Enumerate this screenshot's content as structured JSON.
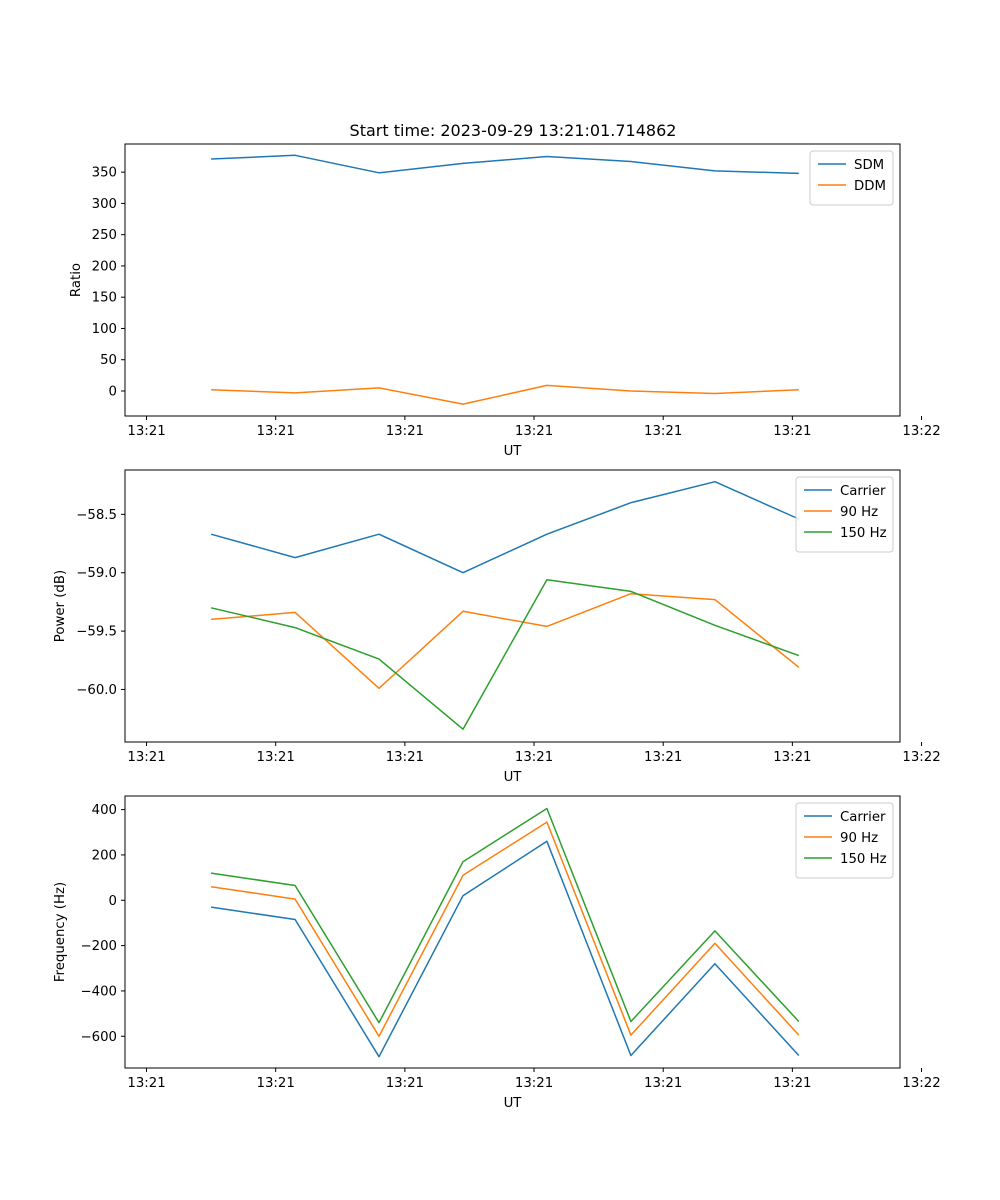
{
  "figure": {
    "title": "Start time: 2023-09-29 13:21:01.714862"
  },
  "chart_data": [
    {
      "type": "line",
      "title": "Start time: 2023-09-29 13:21:01.714862",
      "xlabel": "UT",
      "ylabel": "Ratio",
      "xlim": [
        -0.5,
        17.5
      ],
      "ylim": [
        -40,
        395
      ],
      "x_ticks": [
        0,
        3,
        6,
        9,
        12,
        15,
        18
      ],
      "x_tick_labels": [
        "13:21",
        "13:21",
        "13:21",
        "13:21",
        "13:21",
        "13:21",
        "13:22"
      ],
      "y_ticks": [
        0,
        50,
        100,
        150,
        200,
        250,
        300,
        350
      ],
      "y_tick_labels": [
        "0",
        "50",
        "100",
        "150",
        "200",
        "250",
        "300",
        "350"
      ],
      "legend_position": "top-right",
      "x": [
        1.5,
        3.45,
        5.4,
        7.35,
        9.3,
        11.25,
        13.2,
        15.15
      ],
      "series": [
        {
          "name": "SDM",
          "color": "#1f77b4",
          "values": [
            371,
            377,
            349,
            364,
            375,
            367,
            352,
            348
          ]
        },
        {
          "name": "DDM",
          "color": "#ff7f0e",
          "values": [
            2,
            -3,
            5,
            -21,
            9,
            0,
            -4,
            2
          ]
        }
      ]
    },
    {
      "type": "line",
      "xlabel": "UT",
      "ylabel": "Power (dB)",
      "xlim": [
        -0.5,
        17.5
      ],
      "ylim": [
        -60.45,
        -58.12
      ],
      "x_ticks": [
        0,
        3,
        6,
        9,
        12,
        15,
        18
      ],
      "x_tick_labels": [
        "13:21",
        "13:21",
        "13:21",
        "13:21",
        "13:21",
        "13:21",
        "13:22"
      ],
      "y_ticks": [
        -60.0,
        -59.5,
        -59.0,
        -58.5
      ],
      "y_tick_labels": [
        "−60.0",
        "−59.5",
        "−59.0",
        "−58.5"
      ],
      "legend_position": "top-right",
      "x": [
        1.5,
        3.45,
        5.4,
        7.35,
        9.3,
        11.25,
        13.2,
        15.15
      ],
      "series": [
        {
          "name": "Carrier",
          "color": "#1f77b4",
          "values": [
            -58.67,
            -58.87,
            -58.67,
            -59.0,
            -58.67,
            -58.4,
            -58.22,
            -58.54
          ]
        },
        {
          "name": "90 Hz",
          "color": "#ff7f0e",
          "values": [
            -59.4,
            -59.34,
            -59.99,
            -59.33,
            -59.46,
            -59.18,
            -59.23,
            -59.81
          ]
        },
        {
          "name": "150 Hz",
          "color": "#2ca02c",
          "values": [
            -59.3,
            -59.47,
            -59.74,
            -60.34,
            -59.06,
            -59.16,
            -59.45,
            -59.71
          ]
        }
      ]
    },
    {
      "type": "line",
      "xlabel": "UT",
      "ylabel": "Frequency (Hz)",
      "xlim": [
        -0.5,
        17.5
      ],
      "ylim": [
        -740,
        460
      ],
      "x_ticks": [
        0,
        3,
        6,
        9,
        12,
        15,
        18
      ],
      "x_tick_labels": [
        "13:21",
        "13:21",
        "13:21",
        "13:21",
        "13:21",
        "13:21",
        "13:22"
      ],
      "y_ticks": [
        -600,
        -400,
        -200,
        0,
        200,
        400
      ],
      "y_tick_labels": [
        "−600",
        "−400",
        "−200",
        "0",
        "200",
        "400"
      ],
      "legend_position": "top-right",
      "x": [
        1.5,
        3.45,
        5.4,
        7.35,
        9.3,
        11.25,
        13.2,
        15.15
      ],
      "series": [
        {
          "name": "Carrier",
          "color": "#1f77b4",
          "values": [
            -30,
            -85,
            -690,
            20,
            260,
            -685,
            -280,
            -685
          ]
        },
        {
          "name": "90 Hz",
          "color": "#ff7f0e",
          "values": [
            60,
            5,
            -600,
            110,
            345,
            -595,
            -190,
            -595
          ]
        },
        {
          "name": "150 Hz",
          "color": "#2ca02c",
          "values": [
            120,
            65,
            -540,
            170,
            405,
            -535,
            -135,
            -535
          ]
        }
      ]
    }
  ]
}
